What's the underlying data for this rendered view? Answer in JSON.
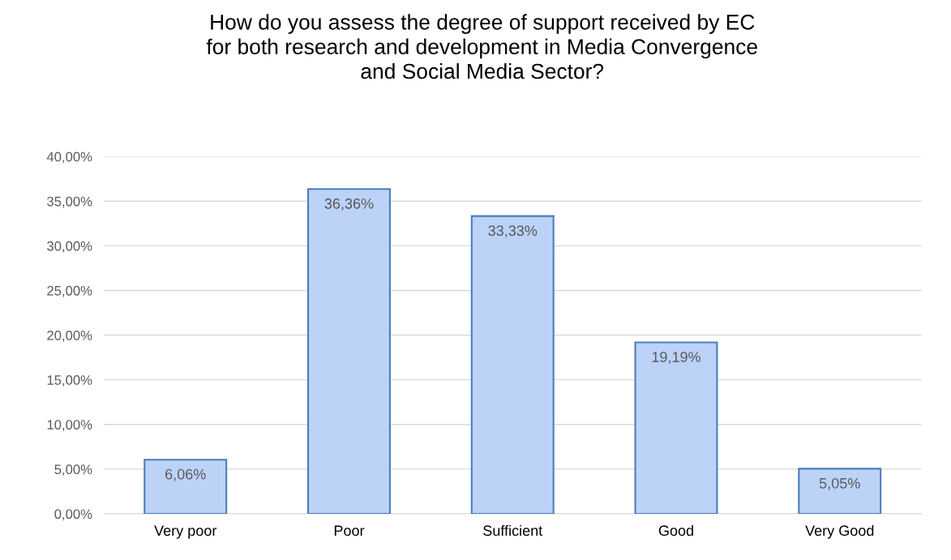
{
  "chart_data": {
    "type": "bar",
    "title": "How do you assess the degree of support received by EC\nfor both research and development in Media Convergence\nand Social Media Sector?",
    "categories": [
      "Very poor",
      "Poor",
      "Sufficient",
      "Good",
      "Very Good"
    ],
    "values": [
      6.06,
      36.36,
      33.33,
      19.19,
      5.05
    ],
    "value_labels": [
      "6,06%",
      "36,36%",
      "33,33%",
      "19,19%",
      "5,05%"
    ],
    "color": "#bcd2f7",
    "ylim": [
      0,
      40
    ],
    "yticks": [
      {
        "value": 0,
        "label": "0,00%"
      },
      {
        "value": 5,
        "label": "5,00%"
      },
      {
        "value": 10,
        "label": "10,00%"
      },
      {
        "value": 15,
        "label": "15,00%"
      },
      {
        "value": 20,
        "label": "20,00%"
      },
      {
        "value": 25,
        "label": "25,00%"
      },
      {
        "value": 30,
        "label": "30,00%"
      },
      {
        "value": 35,
        "label": "35,00%"
      },
      {
        "value": 40,
        "label": "40,00%"
      }
    ],
    "grid": "y",
    "legend": false
  }
}
